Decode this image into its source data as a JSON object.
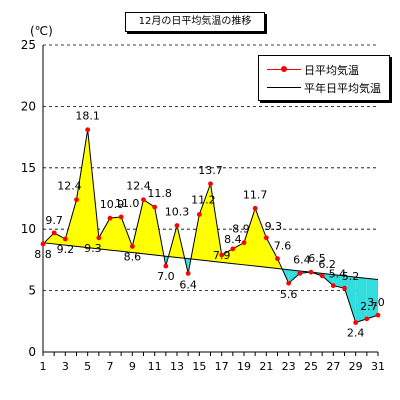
{
  "chart_data": {
    "type": "line",
    "title": "12月の日平均気温の推移",
    "ylabel": "(℃)",
    "xlabel": "",
    "ylim": [
      0,
      25
    ],
    "yticks": [
      0,
      5,
      10,
      15,
      20,
      25
    ],
    "xlim": [
      1,
      31
    ],
    "xticks": [
      1,
      3,
      5,
      7,
      9,
      11,
      13,
      15,
      17,
      19,
      21,
      23,
      25,
      27,
      29,
      31
    ],
    "grid": "horizontal dashed",
    "legend_position": "top-right",
    "x": [
      1,
      2,
      3,
      4,
      5,
      6,
      7,
      8,
      9,
      10,
      11,
      12,
      13,
      14,
      15,
      16,
      17,
      18,
      19,
      20,
      21,
      22,
      23,
      24,
      25,
      26,
      27,
      28,
      29,
      30,
      31
    ],
    "series": [
      {
        "name": "日平均気温",
        "color": "#ff0000",
        "values": [
          8.8,
          9.7,
          9.2,
          12.4,
          18.1,
          9.3,
          10.9,
          11.0,
          8.6,
          12.4,
          11.8,
          7.0,
          10.3,
          6.4,
          11.2,
          13.7,
          7.9,
          8.4,
          8.9,
          11.7,
          9.3,
          7.6,
          5.6,
          6.4,
          6.5,
          6.2,
          5.4,
          5.2,
          2.4,
          2.7,
          3.0
        ],
        "data_labels": [
          "8.8",
          "9.7",
          "9.2",
          "12.4",
          "18.1",
          "9.3",
          "10.9",
          "11.0",
          "8.6",
          "12.4",
          "11.8",
          "7.0",
          "10.3",
          "6.4",
          "11.2",
          "13.7",
          "7.9",
          "8.4",
          "8.9",
          "11.7",
          "9.3",
          "7.6",
          "5.6",
          "6.4",
          "6.5",
          "6.2",
          "5.4",
          "5.2",
          "2.4",
          "2.7",
          "3.0"
        ]
      },
      {
        "name": "平年日平均気温",
        "color": "#000000",
        "values": [
          8.9,
          8.8,
          8.7,
          8.6,
          8.5,
          8.4,
          8.3,
          8.2,
          8.1,
          8.0,
          7.9,
          7.8,
          7.7,
          7.6,
          7.5,
          7.4,
          7.3,
          7.2,
          7.1,
          7.0,
          6.9,
          6.8,
          6.7,
          6.6,
          6.5,
          6.4,
          6.3,
          6.2,
          6.1,
          6.0,
          5.9
        ]
      }
    ],
    "fill_above_color": "#ffff00",
    "fill_below_color": "#33dddd"
  }
}
